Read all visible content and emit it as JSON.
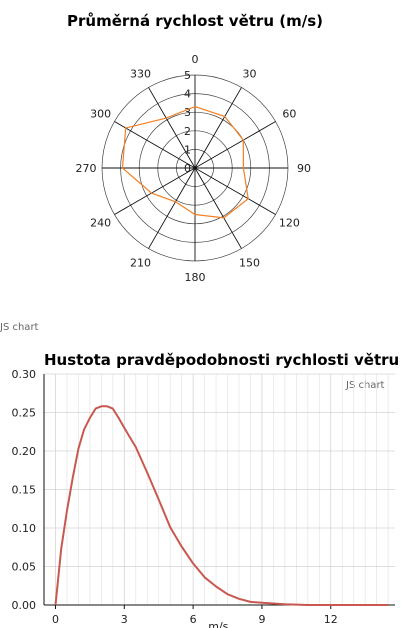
{
  "charts": {
    "polar": {
      "title": "Průměrná rychlost větru (m/s)",
      "credit": "JS chart"
    },
    "pdf": {
      "title": "Hustota pravděpodobnosti rychlosti větru",
      "credit": "JS chart",
      "xlabel": "m/s"
    }
  },
  "chart_data": [
    {
      "type": "radar",
      "title": "Průměrná rychlost větru (m/s)",
      "angles": [
        0,
        30,
        60,
        90,
        120,
        150,
        180,
        210,
        240,
        270,
        300,
        330
      ],
      "angle_labels": [
        "0",
        "30",
        "60",
        "90",
        "120",
        "150",
        "180",
        "210",
        "240",
        "270",
        "300",
        "330"
      ],
      "radial_ticks": [
        "0",
        "1",
        "2",
        "3",
        "4",
        "5"
      ],
      "rlim": [
        0,
        5
      ],
      "series": [
        {
          "values": [
            3.3,
            3.2,
            3.0,
            2.6,
            3.3,
            3.1,
            2.5,
            2.1,
            2.7,
            3.9,
            4.3,
            3.1
          ],
          "color": "#f57f20"
        }
      ]
    },
    {
      "type": "line",
      "title": "Hustota pravděpodobnosti rychlosti větru",
      "xlabel": "m/s",
      "ylabel": "",
      "xlim": [
        -0.5,
        14.8
      ],
      "ylim": [
        0,
        0.3
      ],
      "xticks": [
        "0",
        "3",
        "6",
        "9",
        "12"
      ],
      "yticks": [
        "0.00",
        "0.05",
        "0.10",
        "0.15",
        "0.20",
        "0.25",
        "0.30"
      ],
      "grid": true,
      "series": [
        {
          "color": "#c85850",
          "x": [
            0,
            0.25,
            0.5,
            0.75,
            1.0,
            1.25,
            1.5,
            1.75,
            2.0,
            2.25,
            2.5,
            2.75,
            3.0,
            3.5,
            4.0,
            4.5,
            5.0,
            5.5,
            6.0,
            6.5,
            7.0,
            7.5,
            8.0,
            8.5,
            9.0,
            9.5,
            10.0,
            11.0,
            12.0,
            13.0,
            14.5
          ],
          "y": [
            0.0,
            0.073,
            0.122,
            0.165,
            0.203,
            0.228,
            0.243,
            0.255,
            0.258,
            0.258,
            0.255,
            0.243,
            0.23,
            0.205,
            0.172,
            0.137,
            0.101,
            0.076,
            0.054,
            0.036,
            0.024,
            0.014,
            0.008,
            0.004,
            0.003,
            0.002,
            0.001,
            0.0,
            0.0,
            0.0,
            0.0
          ]
        }
      ]
    }
  ]
}
